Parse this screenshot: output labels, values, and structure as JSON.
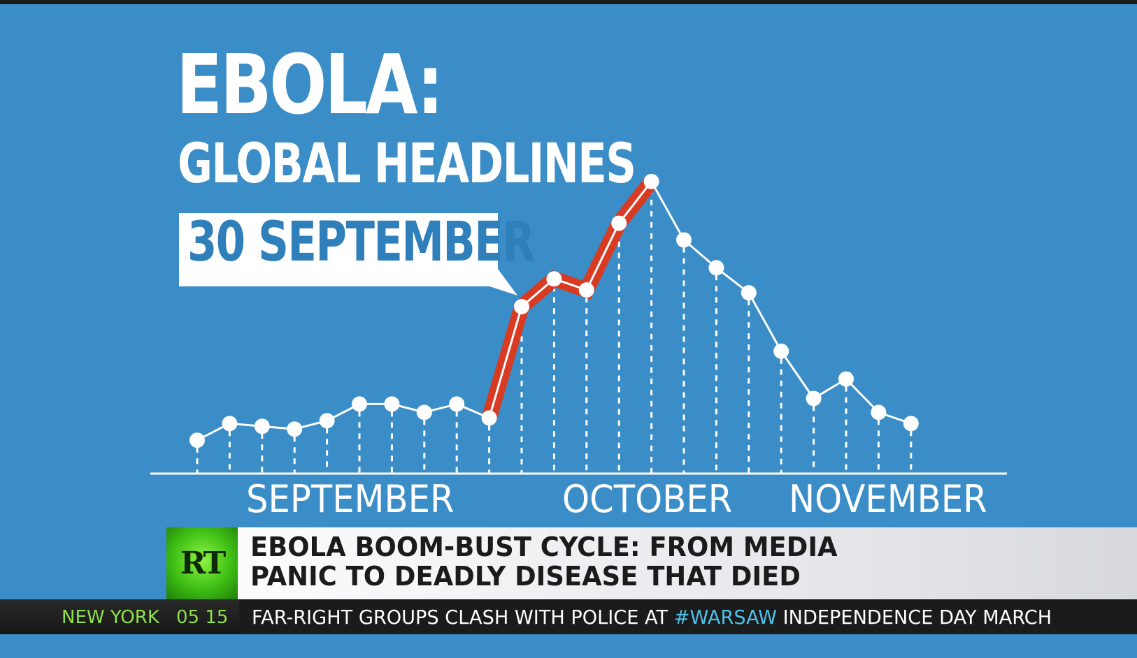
{
  "chart_data": {
    "type": "line",
    "title": "EBOLA:",
    "subtitle": "GLOBAL HEADLINES",
    "annotation": "30 SEPTEMBER",
    "x_labels": [
      "SEPTEMBER",
      "OCTOBER",
      "NOVEMBER"
    ],
    "values": [
      12,
      18,
      17,
      16,
      19,
      25,
      25,
      22,
      25,
      20,
      60,
      70,
      66,
      90,
      105,
      84,
      74,
      65,
      44,
      27,
      34,
      22,
      18
    ],
    "highlight_range": [
      9,
      14
    ],
    "ylim": [
      0,
      115
    ],
    "grid": false,
    "colors": {
      "background": "#3a8dc6",
      "line": "#ffffff",
      "highlight": "#d93a22"
    }
  },
  "news": {
    "logo": "RT",
    "headline_line1": "EBOLA BOOM-BUST CYCLE: FROM MEDIA",
    "headline_line2": "PANIC TO DEADLY DISEASE THAT DIED",
    "ticker_city": "NEW YORK",
    "ticker_time": "05 15",
    "ticker_text_before": "FAR-RIGHT GROUPS CLASH WITH POLICE AT ",
    "ticker_hashtag": "#WARSAW",
    "ticker_text_after": " INDEPENDENCE DAY MARCH",
    "colors": {
      "logo_green": "#3fbf15",
      "ticker_green": "#8ee24a",
      "hashtag_blue": "#4fc1ea"
    }
  }
}
